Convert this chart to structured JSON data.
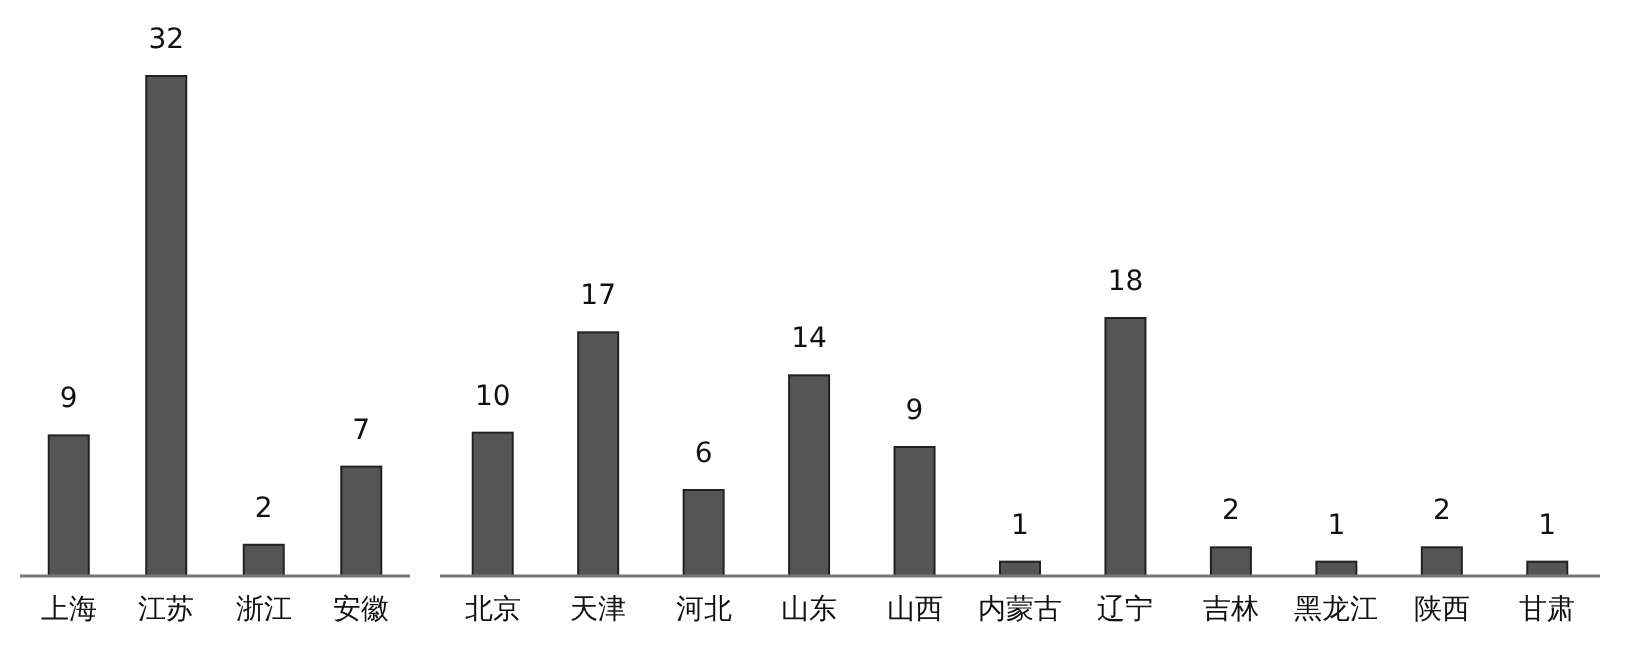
{
  "chart_data": [
    {
      "type": "bar",
      "categories": [
        "上海",
        "江苏",
        "浙江",
        "安徽"
      ],
      "values": [
        9,
        32,
        2,
        7
      ],
      "color": "#555555",
      "data_labels": true
    },
    {
      "type": "bar",
      "categories": [
        "北京",
        "天津",
        "河北",
        "山东",
        "山西",
        "内蒙古",
        "辽宁",
        "吉林",
        "黑龙江",
        "陕西",
        "甘肃"
      ],
      "values": [
        10,
        17,
        6,
        14,
        9,
        1,
        18,
        2,
        1,
        2,
        1
      ],
      "color": "#555555",
      "data_labels": true
    }
  ]
}
